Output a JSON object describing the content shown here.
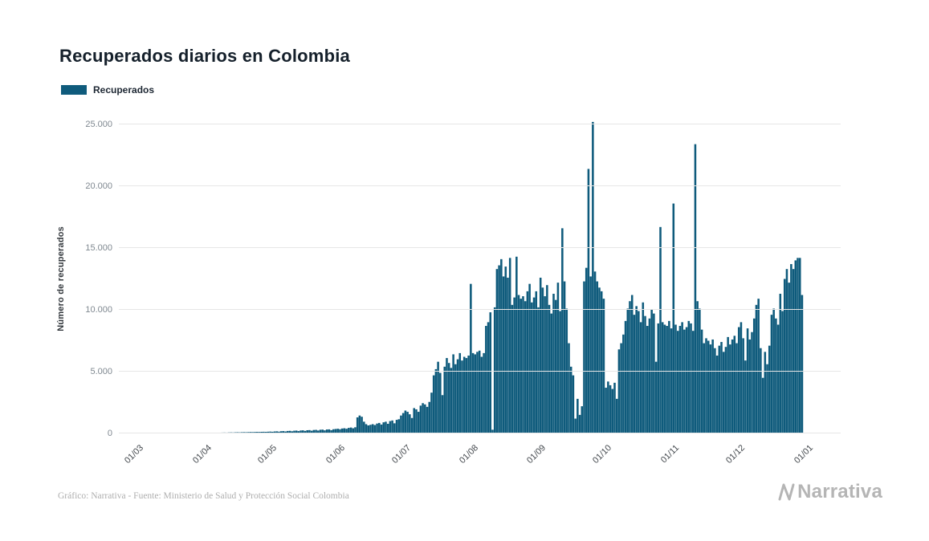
{
  "title": "Recuperados diarios en Colombia",
  "legend": {
    "label": "Recuperados",
    "color": "#0F5B7C"
  },
  "footer": {
    "credit": "Gráfico: Narrativa - Fuente: Ministerio de Salud y Protección Social Colombia",
    "brand": "Narrativa"
  },
  "chart_data": {
    "type": "bar",
    "title": "Recuperados diarios en Colombia",
    "xlabel": "",
    "ylabel": "Número de recuperados",
    "ylim": [
      0,
      25000
    ],
    "grid": true,
    "legend_position": "top-left",
    "bar_color": "#0F5B7C",
    "gridline_color": "#e6e6e6",
    "ytick_values": [
      0,
      5000,
      10000,
      15000,
      20000,
      25000
    ],
    "ytick_labels": [
      "0",
      "5.000",
      "10.000",
      "15.000",
      "20.000",
      "25.000"
    ],
    "xtick_labels": [
      "01/03",
      "01/04",
      "01/05",
      "01/06",
      "01/07",
      "01/08",
      "01/09",
      "01/10",
      "01/11",
      "01/12",
      "01/01"
    ],
    "xtick_day_index": [
      0,
      31,
      61,
      92,
      122,
      153,
      184,
      214,
      245,
      275,
      306
    ],
    "series": [
      {
        "name": "Recuperados",
        "color": "#0F5B7C",
        "values": [
          0,
          0,
          0,
          0,
          0,
          0,
          1,
          1,
          2,
          2,
          3,
          3,
          4,
          5,
          6,
          8,
          10,
          9,
          12,
          14,
          15,
          18,
          20,
          22,
          25,
          24,
          28,
          30,
          32,
          35,
          38,
          40,
          45,
          42,
          50,
          55,
          48,
          60,
          65,
          58,
          70,
          75,
          68,
          80,
          85,
          78,
          90,
          95,
          88,
          100,
          105,
          98,
          110,
          115,
          108,
          120,
          125,
          118,
          130,
          135,
          128,
          140,
          150,
          135,
          160,
          170,
          145,
          180,
          190,
          160,
          200,
          210,
          175,
          220,
          230,
          190,
          240,
          250,
          205,
          260,
          270,
          220,
          280,
          290,
          235,
          300,
          310,
          250,
          320,
          330,
          265,
          340,
          360,
          380,
          340,
          400,
          420,
          380,
          450,
          480,
          420,
          500,
          1300,
          1450,
          1350,
          950,
          750,
          650,
          700,
          750,
          680,
          800,
          850,
          720,
          900,
          950,
          780,
          1000,
          1050,
          820,
          1100,
          1150,
          1450,
          1650,
          1850,
          1750,
          1550,
          1250,
          2050,
          1950,
          1750,
          2250,
          2450,
          2350,
          2150,
          2550,
          3300,
          4700,
          5200,
          5800,
          4900,
          3100,
          5400,
          6100,
          5700,
          5300,
          6400,
          5600,
          6000,
          6500,
          5900,
          6200,
          6100,
          6300,
          12100,
          6500,
          6400,
          6600,
          6700,
          6200,
          6500,
          8700,
          9000,
          9800,
          300,
          10200,
          13300,
          13600,
          14100,
          12700,
          13500,
          12600,
          14200,
          10400,
          11000,
          14300,
          11200,
          10900,
          11100,
          10700,
          11500,
          12100,
          10600,
          11000,
          11500,
          10200,
          12600,
          11800,
          11100,
          12000,
          10400,
          9700,
          11300,
          10800,
          12200,
          9900,
          16600,
          12300,
          10100,
          7300,
          5400,
          4700,
          1200,
          2800,
          1500,
          2200,
          12300,
          13400,
          21400,
          12700,
          25200,
          13100,
          12300,
          11800,
          11500,
          10900,
          3700,
          4200,
          3900,
          3600,
          4100,
          2800,
          6800,
          7300,
          8000,
          9100,
          10100,
          10700,
          11200,
          9600,
          10300,
          9900,
          9000,
          10600,
          9500,
          8700,
          9300,
          10000,
          9700,
          5800,
          8900,
          16700,
          9000,
          8800,
          8700,
          9100,
          8500,
          18600,
          8800,
          8300,
          8700,
          9000,
          8400,
          8600,
          9100,
          8900,
          8300,
          23400,
          10700,
          10100,
          8400,
          7300,
          7700,
          7500,
          7200,
          7600,
          6900,
          6300,
          7100,
          7400,
          6600,
          7000,
          7800,
          7200,
          7600,
          7900,
          7300,
          8600,
          9000,
          7700,
          5900,
          8500,
          7600,
          8200,
          9300,
          10400,
          10900,
          6900,
          4500,
          6600,
          5600,
          7100,
          9600,
          10100,
          9300,
          8800,
          11300,
          9900,
          12500,
          13300,
          12200,
          13700,
          13300,
          14000,
          14200,
          14200,
          11200
        ]
      }
    ]
  }
}
